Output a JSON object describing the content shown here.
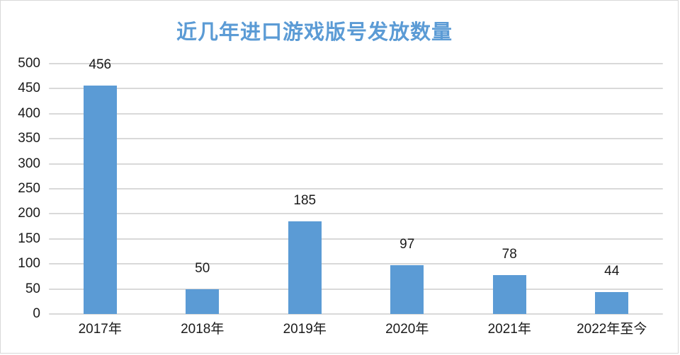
{
  "chart_data": {
    "type": "bar",
    "title": "近几年进口游戏版号发放数量",
    "categories": [
      "2017年",
      "2018年",
      "2019年",
      "2020年",
      "2021年",
      "2022年至今"
    ],
    "values": [
      456,
      50,
      185,
      97,
      78,
      44
    ],
    "xlabel": "",
    "ylabel": "",
    "ylim": [
      0,
      500
    ],
    "ytick_step": 50,
    "ytick_labels": [
      "0",
      "50",
      "100",
      "150",
      "200",
      "250",
      "300",
      "350",
      "400",
      "450",
      "500"
    ],
    "grid": true,
    "legend": "none",
    "colors": {
      "bar": "#5b9bd5",
      "title": "#5b9bd5",
      "gridline": "#d9d9d9",
      "axis_line": "#d9d9d9",
      "text": "#1a1a1a",
      "frame_border": "#d9d9d9",
      "background": "#ffffff"
    }
  }
}
